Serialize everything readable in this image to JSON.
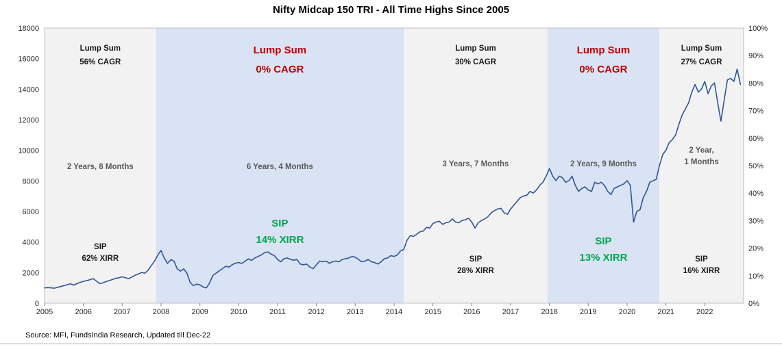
{
  "title": "Nifty Midcap 150 TRI - All Time Highs Since 2005",
  "footer": {
    "source": "Source: MFI, FundsIndia Research, Updated till Dec-22"
  },
  "chart_data": {
    "type": "line",
    "title": "Nifty Midcap 150 TRI - All Time Highs Since 2005",
    "x_axis": {
      "start_year": 2005,
      "end_year": 2023,
      "tick_labels": [
        "2005",
        "2006",
        "2007",
        "2008",
        "2009",
        "2010",
        "2011",
        "2012",
        "2013",
        "2014",
        "2015",
        "2016",
        "2017",
        "2018",
        "2019",
        "2020",
        "2021",
        "2022"
      ]
    },
    "y_axis_left": {
      "min": 0,
      "max": 18000,
      "tick_step": 2000,
      "tick_labels": [
        "0",
        "2000",
        "4000",
        "6000",
        "8000",
        "10000",
        "12000",
        "14000",
        "16000",
        "18000"
      ]
    },
    "y_axis_right": {
      "min": 0,
      "max": 100,
      "tick_labels": [
        "0%",
        "10%",
        "20%",
        "30%",
        "40%",
        "50%",
        "60%",
        "70%",
        "80%",
        "90%",
        "100%"
      ]
    },
    "series": [
      {
        "name": "Nifty Midcap 150 TRI",
        "color": "#2F5597",
        "interval": "monthly",
        "start": "2005-01",
        "values": [
          1000,
          1020,
          1005,
          980,
          1040,
          1090,
          1150,
          1210,
          1270,
          1180,
          1280,
          1360,
          1430,
          1480,
          1530,
          1610,
          1450,
          1280,
          1330,
          1410,
          1480,
          1550,
          1630,
          1660,
          1730,
          1660,
          1610,
          1710,
          1830,
          1910,
          2010,
          1960,
          2160,
          2460,
          2760,
          3150,
          3450,
          2950,
          2600,
          2850,
          2750,
          2250,
          2100,
          2250,
          1950,
          1350,
          1150,
          1250,
          1200,
          1060,
          1000,
          1320,
          1820,
          1960,
          2120,
          2260,
          2420,
          2360,
          2520,
          2620,
          2660,
          2600,
          2760,
          2900,
          2800,
          2960,
          3060,
          3160,
          3310,
          3360,
          3210,
          3110,
          2860,
          2710,
          2910,
          2960,
          2860,
          2810,
          2860,
          2560,
          2510,
          2560,
          2360,
          2260,
          2510,
          2760,
          2710,
          2760,
          2610,
          2710,
          2760,
          2710,
          2860,
          2910,
          2960,
          3060,
          3010,
          2860,
          2710,
          2760,
          2860,
          2710,
          2660,
          2560,
          2710,
          2910,
          2960,
          3110,
          3060,
          3160,
          3420,
          3520,
          4120,
          4420,
          4370,
          4520,
          4670,
          4720,
          4960,
          4910,
          5210,
          5310,
          5360,
          5160,
          5260,
          5310,
          5510,
          5310,
          5260,
          5410,
          5460,
          5560,
          5310,
          4910,
          5260,
          5410,
          5510,
          5660,
          5910,
          6060,
          6160,
          6210,
          5910,
          5810,
          6160,
          6410,
          6660,
          6910,
          7010,
          7060,
          7310,
          7210,
          7410,
          7710,
          7910,
          8310,
          8810,
          8310,
          8010,
          8310,
          8210,
          7910,
          8010,
          8310,
          7710,
          7310,
          7510,
          7610,
          7410,
          7310,
          7910,
          7810,
          7910,
          7710,
          7310,
          7110,
          7510,
          7610,
          7710,
          7810,
          8010,
          7710,
          5300,
          6010,
          6110,
          6910,
          7310,
          7910,
          8010,
          8110,
          9010,
          9710,
          10010,
          10510,
          10710,
          11010,
          11710,
          12310,
          12710,
          13110,
          13810,
          14310,
          13810,
          14010,
          14510,
          13710,
          14210,
          14410,
          13110,
          11910,
          13310,
          14610,
          14710,
          14510,
          15310,
          14310
        ]
      }
    ],
    "regions": [
      {
        "start": 2005.0,
        "end": 2007.87,
        "shaded": false,
        "style": "normal",
        "lump_sum": "Lump Sum\n56% CAGR",
        "duration": "2 Years, 8 Months",
        "sip": "SIP\n62% XIRR"
      },
      {
        "start": 2007.87,
        "end": 2014.25,
        "shaded": true,
        "style": "highlight",
        "lump_sum": "Lump Sum\n0% CAGR",
        "duration": "6 Years, 4 Months",
        "sip": "SIP\n14% XIRR"
      },
      {
        "start": 2014.25,
        "end": 2017.95,
        "shaded": false,
        "style": "normal",
        "lump_sum": "Lump Sum\n30% CAGR",
        "duration": "3 Years, 7 Months",
        "sip": "SIP\n28% XIRR"
      },
      {
        "start": 2017.95,
        "end": 2020.83,
        "shaded": true,
        "style": "highlight",
        "lump_sum": "Lump Sum\n0% CAGR",
        "duration": "2 Years, 9 Months",
        "sip": "SIP\n13% XIRR"
      },
      {
        "start": 2020.83,
        "end": 2023.0,
        "shaded": false,
        "style": "normal",
        "lump_sum": "Lump Sum\n27% CAGR",
        "duration": "2 Year,\n1  Months",
        "sip": "SIP\n16% XIRR"
      }
    ],
    "colors": {
      "line": "#2F5597",
      "shaded_region": "#DAE3F3",
      "plain_region": "#F2F2F2",
      "highlight_red": "#C00000",
      "highlight_green": "#00A651",
      "duration_gray": "#595959"
    }
  }
}
